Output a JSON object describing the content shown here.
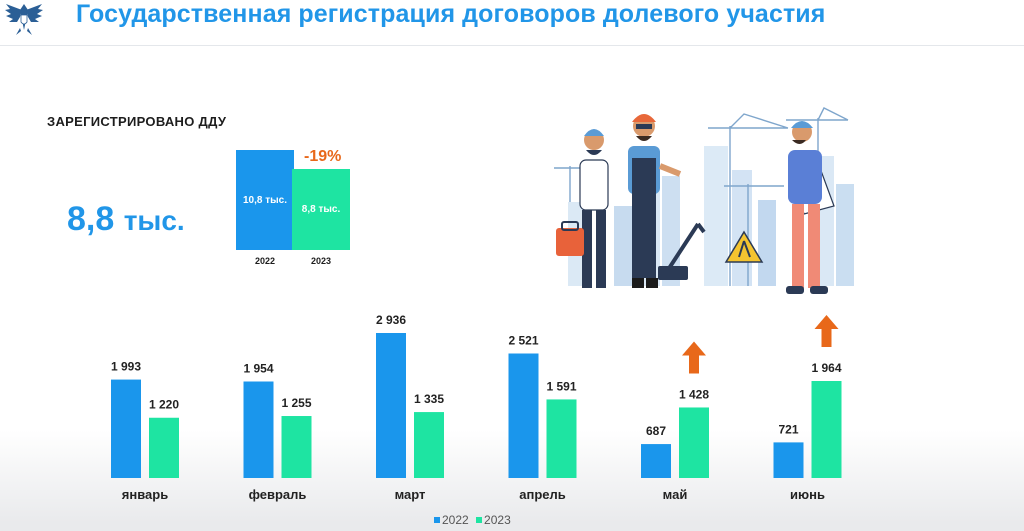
{
  "header": {
    "title": "Государственная регистрация договоров долевого участия"
  },
  "summary": {
    "label": "ЗАРЕГИСТРИРОВАНО ДДУ",
    "total_value": "8,8",
    "total_unit": "тыс."
  },
  "colors": {
    "y2022": "#1a96ec",
    "y2023": "#1ee4a2",
    "title": "#2196e8",
    "arrow": "#e8681a"
  },
  "mini_chart": {
    "bars": [
      {
        "year": "2022",
        "label": "10,8 тыс.",
        "value": 10.8
      },
      {
        "year": "2023",
        "label": "8,8 тыс.",
        "value": 8.8
      }
    ],
    "change": "-19%"
  },
  "chart_data": {
    "type": "bar",
    "categories": [
      "январь",
      "февраль",
      "март",
      "апрель",
      "май",
      "июнь"
    ],
    "series": [
      {
        "name": "2022",
        "values": [
          1993,
          1954,
          2936,
          2521,
          687,
          721
        ],
        "labels": [
          "1 993",
          "1 954",
          "2 936",
          "2 521",
          "687",
          "721"
        ]
      },
      {
        "name": "2023",
        "values": [
          1220,
          1255,
          1335,
          1591,
          1428,
          1964
        ],
        "labels": [
          "1 220",
          "1 255",
          "1 335",
          "1 591",
          "1 428",
          "1 964"
        ]
      }
    ],
    "growth_arrows": [
      "май",
      "июнь"
    ],
    "legend_position": "bottom",
    "grid": false
  }
}
